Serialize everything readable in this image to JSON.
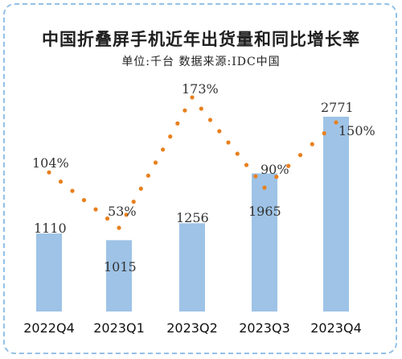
{
  "header": {
    "title": "中国折叠屏手机近年出货量和同比增长率",
    "subtitle": "单位:千台   数据来源:IDC中国"
  },
  "colors": {
    "bar": "#9ec3e6",
    "dots": "#e8801e",
    "frame": "#93c0e6"
  },
  "chart_data": {
    "type": "bar",
    "title": "中国折叠屏手机近年出货量和同比增长率",
    "categories": [
      "2022Q4",
      "2023Q1",
      "2023Q2",
      "2023Q3",
      "2023Q4"
    ],
    "series": [
      {
        "type": "bar",
        "values": [
          1110,
          1015,
          1256,
          1965,
          2771
        ],
        "value_labels": [
          "1110",
          "1015",
          "1256",
          "1965",
          "2771"
        ]
      },
      {
        "type": "line",
        "style": "dotted",
        "values": [
          104,
          53,
          173,
          90,
          150
        ],
        "value_labels": [
          "104%",
          "53%",
          "173%",
          "90%",
          "150%"
        ]
      }
    ],
    "ylim": [
      0,
      2900
    ],
    "y2lim": [
      0,
      200
    ],
    "grid": false,
    "legend": "none"
  }
}
